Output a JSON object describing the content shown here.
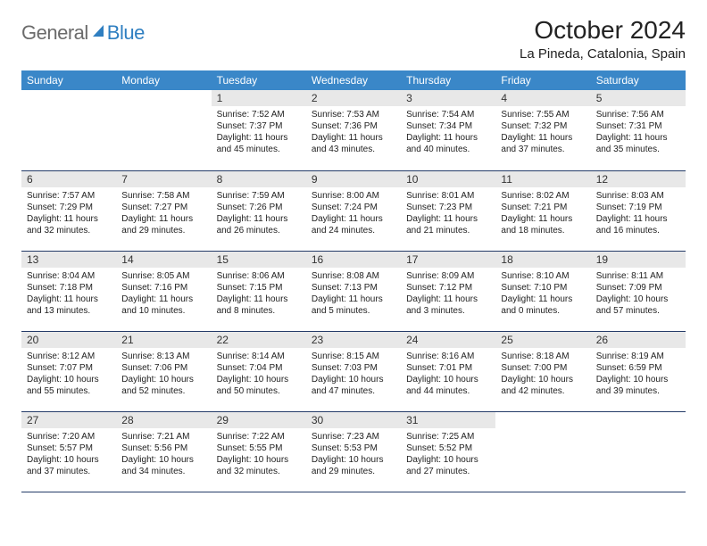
{
  "logo": {
    "general": "General",
    "blue": "Blue"
  },
  "header": {
    "month_title": "October 2024",
    "location": "La Pineda, Catalonia, Spain"
  },
  "colors": {
    "header_bg": "#3a87c8",
    "row_divider": "#243b68",
    "daynum_bg": "#e8e8e8",
    "logo_gray": "#6b6b6b",
    "logo_blue": "#2f7fc1"
  },
  "weekdays": [
    "Sunday",
    "Monday",
    "Tuesday",
    "Wednesday",
    "Thursday",
    "Friday",
    "Saturday"
  ],
  "weeks": [
    [
      {
        "empty": true
      },
      {
        "empty": true
      },
      {
        "num": "1",
        "sunrise": "Sunrise: 7:52 AM",
        "sunset": "Sunset: 7:37 PM",
        "day1": "Daylight: 11 hours",
        "day2": "and 45 minutes."
      },
      {
        "num": "2",
        "sunrise": "Sunrise: 7:53 AM",
        "sunset": "Sunset: 7:36 PM",
        "day1": "Daylight: 11 hours",
        "day2": "and 43 minutes."
      },
      {
        "num": "3",
        "sunrise": "Sunrise: 7:54 AM",
        "sunset": "Sunset: 7:34 PM",
        "day1": "Daylight: 11 hours",
        "day2": "and 40 minutes."
      },
      {
        "num": "4",
        "sunrise": "Sunrise: 7:55 AM",
        "sunset": "Sunset: 7:32 PM",
        "day1": "Daylight: 11 hours",
        "day2": "and 37 minutes."
      },
      {
        "num": "5",
        "sunrise": "Sunrise: 7:56 AM",
        "sunset": "Sunset: 7:31 PM",
        "day1": "Daylight: 11 hours",
        "day2": "and 35 minutes."
      }
    ],
    [
      {
        "num": "6",
        "sunrise": "Sunrise: 7:57 AM",
        "sunset": "Sunset: 7:29 PM",
        "day1": "Daylight: 11 hours",
        "day2": "and 32 minutes."
      },
      {
        "num": "7",
        "sunrise": "Sunrise: 7:58 AM",
        "sunset": "Sunset: 7:27 PM",
        "day1": "Daylight: 11 hours",
        "day2": "and 29 minutes."
      },
      {
        "num": "8",
        "sunrise": "Sunrise: 7:59 AM",
        "sunset": "Sunset: 7:26 PM",
        "day1": "Daylight: 11 hours",
        "day2": "and 26 minutes."
      },
      {
        "num": "9",
        "sunrise": "Sunrise: 8:00 AM",
        "sunset": "Sunset: 7:24 PM",
        "day1": "Daylight: 11 hours",
        "day2": "and 24 minutes."
      },
      {
        "num": "10",
        "sunrise": "Sunrise: 8:01 AM",
        "sunset": "Sunset: 7:23 PM",
        "day1": "Daylight: 11 hours",
        "day2": "and 21 minutes."
      },
      {
        "num": "11",
        "sunrise": "Sunrise: 8:02 AM",
        "sunset": "Sunset: 7:21 PM",
        "day1": "Daylight: 11 hours",
        "day2": "and 18 minutes."
      },
      {
        "num": "12",
        "sunrise": "Sunrise: 8:03 AM",
        "sunset": "Sunset: 7:19 PM",
        "day1": "Daylight: 11 hours",
        "day2": "and 16 minutes."
      }
    ],
    [
      {
        "num": "13",
        "sunrise": "Sunrise: 8:04 AM",
        "sunset": "Sunset: 7:18 PM",
        "day1": "Daylight: 11 hours",
        "day2": "and 13 minutes."
      },
      {
        "num": "14",
        "sunrise": "Sunrise: 8:05 AM",
        "sunset": "Sunset: 7:16 PM",
        "day1": "Daylight: 11 hours",
        "day2": "and 10 minutes."
      },
      {
        "num": "15",
        "sunrise": "Sunrise: 8:06 AM",
        "sunset": "Sunset: 7:15 PM",
        "day1": "Daylight: 11 hours",
        "day2": "and 8 minutes."
      },
      {
        "num": "16",
        "sunrise": "Sunrise: 8:08 AM",
        "sunset": "Sunset: 7:13 PM",
        "day1": "Daylight: 11 hours",
        "day2": "and 5 minutes."
      },
      {
        "num": "17",
        "sunrise": "Sunrise: 8:09 AM",
        "sunset": "Sunset: 7:12 PM",
        "day1": "Daylight: 11 hours",
        "day2": "and 3 minutes."
      },
      {
        "num": "18",
        "sunrise": "Sunrise: 8:10 AM",
        "sunset": "Sunset: 7:10 PM",
        "day1": "Daylight: 11 hours",
        "day2": "and 0 minutes."
      },
      {
        "num": "19",
        "sunrise": "Sunrise: 8:11 AM",
        "sunset": "Sunset: 7:09 PM",
        "day1": "Daylight: 10 hours",
        "day2": "and 57 minutes."
      }
    ],
    [
      {
        "num": "20",
        "sunrise": "Sunrise: 8:12 AM",
        "sunset": "Sunset: 7:07 PM",
        "day1": "Daylight: 10 hours",
        "day2": "and 55 minutes."
      },
      {
        "num": "21",
        "sunrise": "Sunrise: 8:13 AM",
        "sunset": "Sunset: 7:06 PM",
        "day1": "Daylight: 10 hours",
        "day2": "and 52 minutes."
      },
      {
        "num": "22",
        "sunrise": "Sunrise: 8:14 AM",
        "sunset": "Sunset: 7:04 PM",
        "day1": "Daylight: 10 hours",
        "day2": "and 50 minutes."
      },
      {
        "num": "23",
        "sunrise": "Sunrise: 8:15 AM",
        "sunset": "Sunset: 7:03 PM",
        "day1": "Daylight: 10 hours",
        "day2": "and 47 minutes."
      },
      {
        "num": "24",
        "sunrise": "Sunrise: 8:16 AM",
        "sunset": "Sunset: 7:01 PM",
        "day1": "Daylight: 10 hours",
        "day2": "and 44 minutes."
      },
      {
        "num": "25",
        "sunrise": "Sunrise: 8:18 AM",
        "sunset": "Sunset: 7:00 PM",
        "day1": "Daylight: 10 hours",
        "day2": "and 42 minutes."
      },
      {
        "num": "26",
        "sunrise": "Sunrise: 8:19 AM",
        "sunset": "Sunset: 6:59 PM",
        "day1": "Daylight: 10 hours",
        "day2": "and 39 minutes."
      }
    ],
    [
      {
        "num": "27",
        "sunrise": "Sunrise: 7:20 AM",
        "sunset": "Sunset: 5:57 PM",
        "day1": "Daylight: 10 hours",
        "day2": "and 37 minutes."
      },
      {
        "num": "28",
        "sunrise": "Sunrise: 7:21 AM",
        "sunset": "Sunset: 5:56 PM",
        "day1": "Daylight: 10 hours",
        "day2": "and 34 minutes."
      },
      {
        "num": "29",
        "sunrise": "Sunrise: 7:22 AM",
        "sunset": "Sunset: 5:55 PM",
        "day1": "Daylight: 10 hours",
        "day2": "and 32 minutes."
      },
      {
        "num": "30",
        "sunrise": "Sunrise: 7:23 AM",
        "sunset": "Sunset: 5:53 PM",
        "day1": "Daylight: 10 hours",
        "day2": "and 29 minutes."
      },
      {
        "num": "31",
        "sunrise": "Sunrise: 7:25 AM",
        "sunset": "Sunset: 5:52 PM",
        "day1": "Daylight: 10 hours",
        "day2": "and 27 minutes."
      },
      {
        "empty": true
      },
      {
        "empty": true
      }
    ]
  ]
}
